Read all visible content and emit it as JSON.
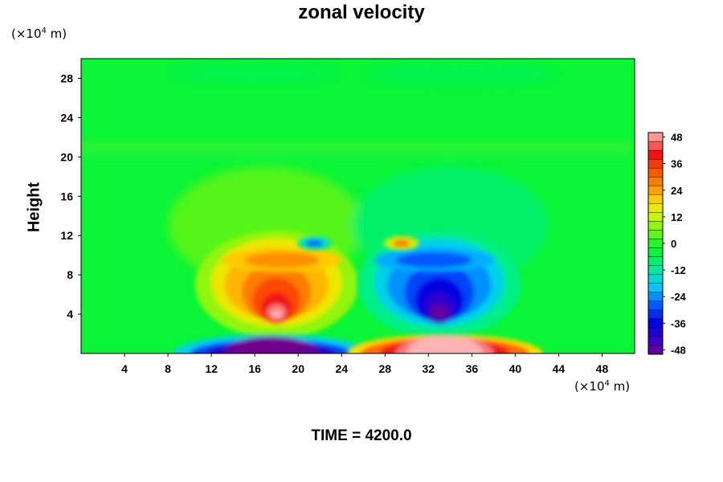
{
  "chart_data": {
    "type": "heatmap",
    "title": "zonal velocity",
    "ylabel": "Height",
    "xlabel": "",
    "x_unit_prefix": "(×10",
    "x_unit_exp": "4",
    "x_unit_suffix": " m)",
    "y_unit_prefix": "(×10",
    "y_unit_exp": "4",
    "y_unit_suffix": " m)",
    "footer": "TIME = 4200.0",
    "xlim": [
      0,
      51
    ],
    "ylim": [
      0,
      30
    ],
    "x_ticks": [
      4,
      8,
      12,
      16,
      20,
      24,
      28,
      32,
      36,
      40,
      44,
      48
    ],
    "y_ticks": [
      4,
      8,
      12,
      16,
      20,
      24,
      28
    ],
    "colorbar": {
      "min": -50,
      "max": 50,
      "step": 4,
      "tick_values": [
        48,
        36,
        24,
        12,
        0,
        -12,
        -24,
        -36,
        -48
      ],
      "tick_labels": [
        "48",
        "36",
        "24",
        "12",
        "0",
        "-12",
        "-24",
        "-36",
        "-48"
      ]
    },
    "features": [
      {
        "name": "positive lobe (left)",
        "x": 18,
        "y": 4,
        "peak": 48
      },
      {
        "name": "negative lobe (right)",
        "x": 33,
        "y": 4,
        "peak": -48
      },
      {
        "name": "negative surface band (left)",
        "x": 18,
        "y": 1,
        "peak": -50
      },
      {
        "name": "positive surface band (right)",
        "x": 33,
        "y": 1,
        "peak": 50
      },
      {
        "name": "small negative spot (upper left)",
        "x": 21.5,
        "y": 11.2,
        "peak": -28
      },
      {
        "name": "small positive spot (upper right)",
        "x": 29.5,
        "y": 11.2,
        "peak": 28
      }
    ]
  }
}
